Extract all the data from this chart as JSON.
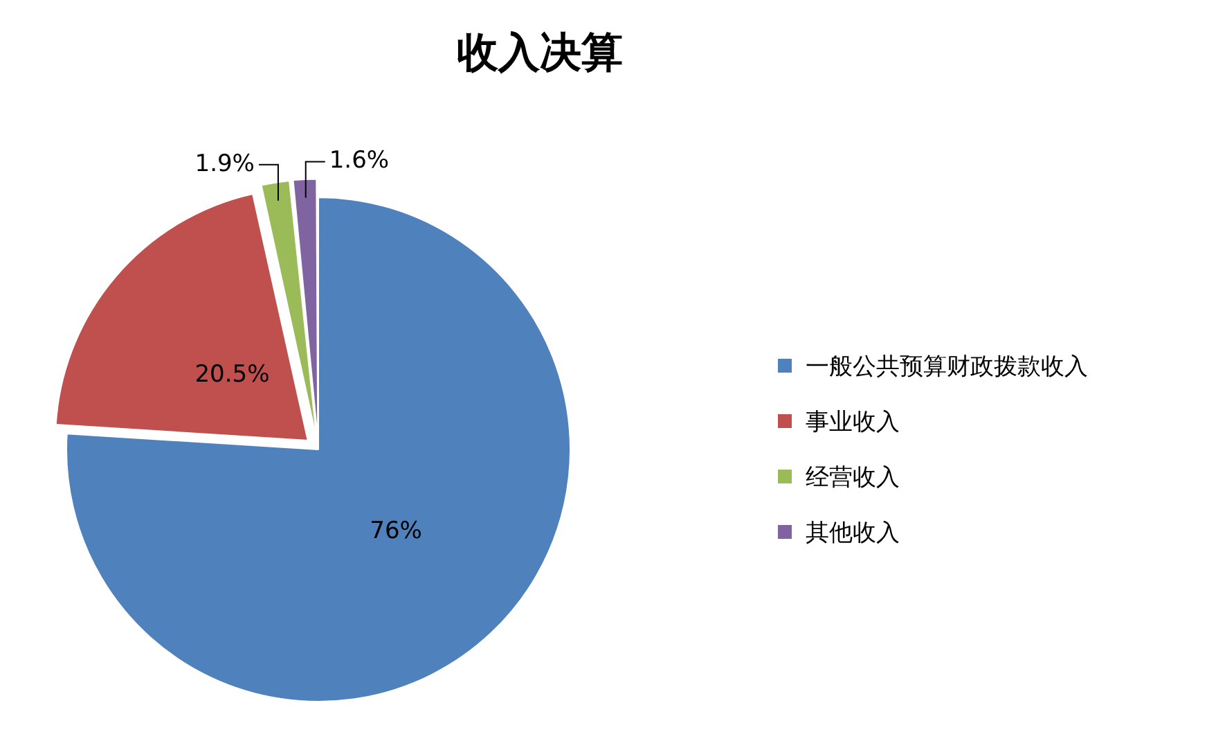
{
  "chart_data": {
    "type": "pie",
    "title": "收入决算",
    "categories": [
      "一般公共预算财政拨款收入",
      "事业收入",
      "经营收入",
      "其他收入"
    ],
    "values": [
      76,
      20.5,
      1.9,
      1.6
    ],
    "colors": [
      "#4f81bd",
      "#c0504d",
      "#9bbb59",
      "#8064a2"
    ],
    "value_labels": [
      "76%",
      "20.5%",
      "1.9%",
      "1.6%"
    ],
    "legend": "right"
  }
}
